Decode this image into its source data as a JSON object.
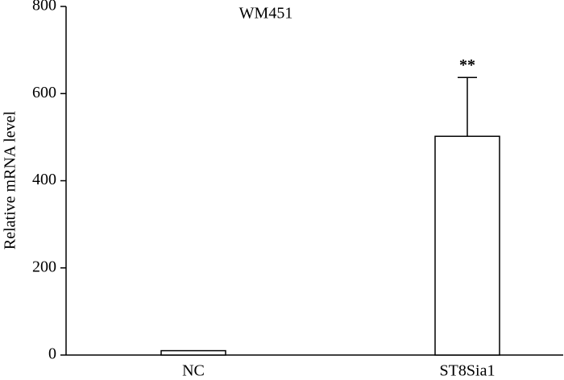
{
  "chart_data": {
    "type": "bar",
    "title": "WM451",
    "ylabel": "Relative mRNA level",
    "categories": [
      "NC",
      "ST8Sia1"
    ],
    "values": [
      10,
      502
    ],
    "errors": [
      null,
      135
    ],
    "value_annotations": [
      null,
      "**"
    ],
    "color": "#ffffff",
    "edge_color": "#000000",
    "ylim": [
      0,
      800
    ],
    "yticks": [
      0,
      200,
      400,
      600,
      800
    ],
    "grid": false
  }
}
